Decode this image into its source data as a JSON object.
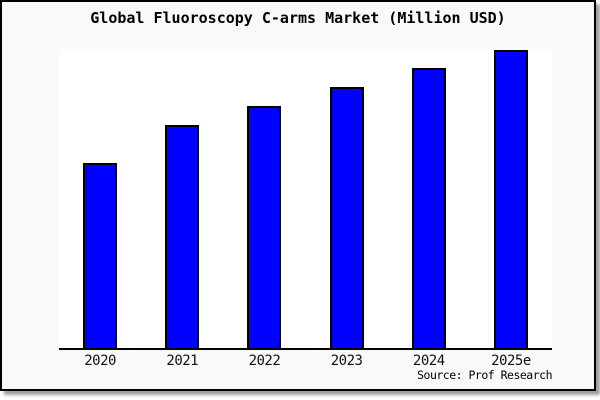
{
  "window": {
    "card_background": "#f9f9f9",
    "card_border_color": "#000000"
  },
  "chart_data": {
    "type": "bar",
    "title": "Global Fluoroscopy C-arms Market (Million USD)",
    "categories": [
      "2020",
      "2021",
      "2022",
      "2023",
      "2024",
      "2025e"
    ],
    "values": [
      62.0,
      74.6,
      80.9,
      87.3,
      93.6,
      99.7
    ],
    "xlabel": "",
    "ylabel": "",
    "ylim": [
      0,
      100
    ],
    "y_axis_visible": false,
    "grid": false,
    "legend": false,
    "bar_fill": "#0000ff",
    "bar_border": "#000000",
    "plot_background": "#ffffff",
    "source_credit": "Source: Prof Research"
  }
}
